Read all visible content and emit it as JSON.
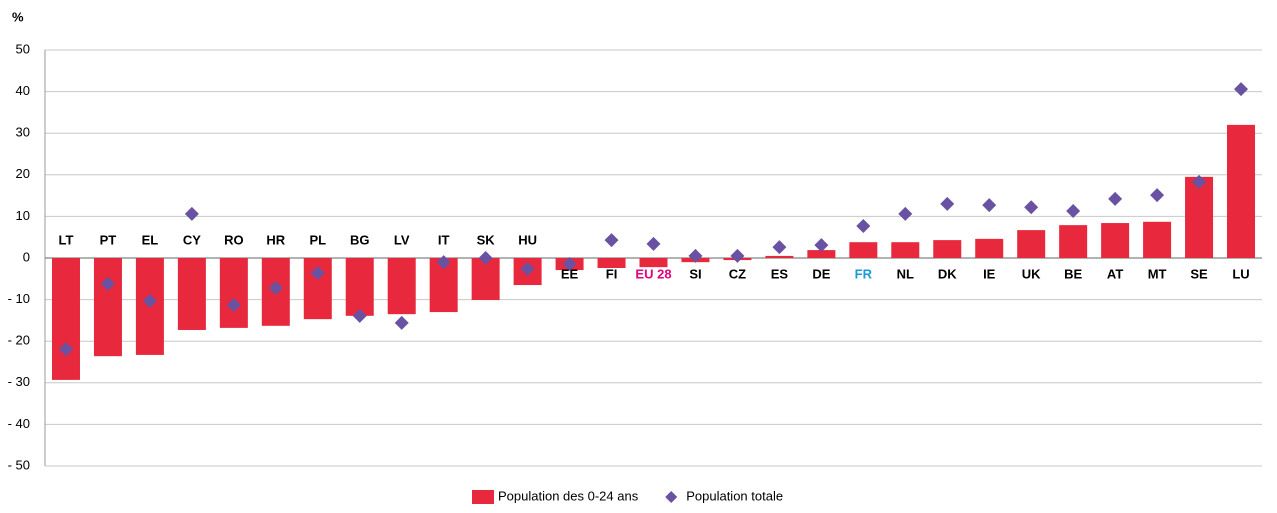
{
  "chart_data": {
    "type": "bar",
    "y_label": "%",
    "categories": [
      "LT",
      "PT",
      "EL",
      "CY",
      "RO",
      "HR",
      "PL",
      "BG",
      "LV",
      "IT",
      "SK",
      "HU",
      "EE",
      "FI",
      "EU 28",
      "SI",
      "CZ",
      "ES",
      "DE",
      "FR",
      "NL",
      "DK",
      "IE",
      "UK",
      "BE",
      "AT",
      "MT",
      "SE",
      "LU"
    ],
    "category_colors": [
      "#000000",
      "#000000",
      "#000000",
      "#000000",
      "#000000",
      "#000000",
      "#000000",
      "#000000",
      "#000000",
      "#000000",
      "#000000",
      "#000000",
      "#000000",
      "#000000",
      "#e6007e",
      "#000000",
      "#000000",
      "#000000",
      "#000000",
      "#1a9ad6",
      "#000000",
      "#000000",
      "#000000",
      "#000000",
      "#000000",
      "#000000",
      "#000000",
      "#000000",
      "#000000"
    ],
    "series": [
      {
        "name": "Population des 0-24 ans",
        "type": "bar",
        "color": "#e8283c",
        "values": [
          -29.3,
          -23.6,
          -23.3,
          -17.3,
          -16.8,
          -16.3,
          -14.7,
          -13.9,
          -13.5,
          -13.0,
          -10.1,
          -6.5,
          -2.9,
          -2.4,
          -2.2,
          -1.0,
          -0.5,
          0.5,
          1.9,
          3.8,
          3.8,
          4.3,
          4.6,
          6.7,
          7.9,
          8.4,
          8.7,
          19.5,
          32.0
        ]
      },
      {
        "name": "Population totale",
        "type": "scatter",
        "color": "#6a52a3",
        "values": [
          -21.9,
          -6.2,
          -10.3,
          10.6,
          -11.3,
          -7.2,
          -3.6,
          -13.9,
          -15.6,
          -1.0,
          0.0,
          -2.6,
          -1.4,
          4.3,
          3.4,
          0.5,
          0.5,
          2.6,
          3.1,
          7.7,
          10.6,
          13.0,
          12.7,
          12.2,
          11.3,
          14.2,
          15.1,
          18.3,
          40.6
        ]
      }
    ],
    "ylim": [
      -50,
      50
    ],
    "yticks": [
      {
        "value": -50,
        "label": "- 50"
      },
      {
        "value": -40,
        "label": "- 40"
      },
      {
        "value": -30,
        "label": "- 30"
      },
      {
        "value": -20,
        "label": "- 20"
      },
      {
        "value": -10,
        "label": "- 10"
      },
      0,
      10,
      20,
      30,
      40,
      50
    ],
    "grid": true
  }
}
